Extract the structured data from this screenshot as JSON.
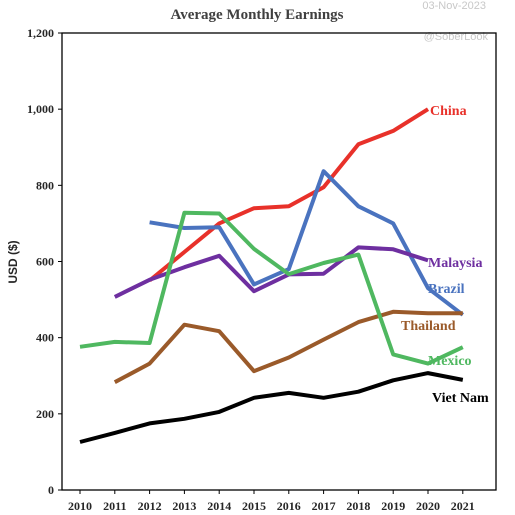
{
  "meta": {
    "date": "03-Nov-2023",
    "watermark": "@SoberLook"
  },
  "chart_data": {
    "type": "line",
    "title": "Average Monthly Earnings",
    "xlabel": "",
    "ylabel": "USD ($)",
    "x": [
      2010,
      2011,
      2012,
      2013,
      2014,
      2015,
      2016,
      2017,
      2018,
      2019,
      2020,
      2021
    ],
    "x_tick_labels": [
      "2010",
      "2011",
      "2012",
      "2013",
      "2014",
      "2015",
      "2016",
      "2017",
      "2018",
      "2019",
      "2020",
      "2021"
    ],
    "ylim": [
      0,
      1200
    ],
    "y_ticks": [
      0,
      200,
      400,
      600,
      800,
      1000,
      1200
    ],
    "y_tick_labels": [
      "0",
      "200",
      "400",
      "600",
      "800",
      "1,000",
      "1,200"
    ],
    "grid": false,
    "legend": "inline-labels",
    "series": [
      {
        "name": "China",
        "color": "#e8312a",
        "x": [
          2012,
          2013,
          2014,
          2015,
          2016,
          2017,
          2018,
          2019,
          2020
        ],
        "values": [
          550,
          625,
          700,
          740,
          745,
          795,
          908,
          943,
          1000
        ]
      },
      {
        "name": "Brazil",
        "color": "#4a73bf",
        "x": [
          2012,
          2013,
          2014,
          2015,
          2016,
          2017,
          2018,
          2019,
          2020,
          2021
        ],
        "values": [
          703,
          688,
          690,
          540,
          580,
          837,
          745,
          700,
          530,
          460
        ]
      },
      {
        "name": "Malaysia",
        "color": "#6e2fa0",
        "x": [
          2011,
          2012,
          2013,
          2014,
          2015,
          2016,
          2017,
          2018,
          2019,
          2020
        ],
        "values": [
          507,
          552,
          585,
          615,
          522,
          566,
          568,
          637,
          632,
          603
        ]
      },
      {
        "name": "Thailand",
        "color": "#9a5a2a",
        "x": [
          2011,
          2012,
          2013,
          2014,
          2015,
          2016,
          2017,
          2018,
          2019,
          2020,
          2021
        ],
        "values": [
          283,
          332,
          434,
          417,
          312,
          348,
          395,
          441,
          468,
          464,
          464
        ]
      },
      {
        "name": "Mexico",
        "color": "#4fb860",
        "x": [
          2010,
          2011,
          2012,
          2013,
          2014,
          2015,
          2016,
          2017,
          2018,
          2019,
          2020,
          2021
        ],
        "values": [
          376,
          389,
          386,
          728,
          726,
          633,
          567,
          596,
          618,
          356,
          332,
          375
        ]
      },
      {
        "name": "Viet Nam",
        "color": "#000000",
        "x": [
          2010,
          2011,
          2012,
          2013,
          2014,
          2015,
          2016,
          2017,
          2018,
          2019,
          2020,
          2021
        ],
        "values": [
          126,
          150,
          175,
          187,
          205,
          242,
          255,
          242,
          258,
          288,
          307,
          289
        ]
      }
    ]
  }
}
